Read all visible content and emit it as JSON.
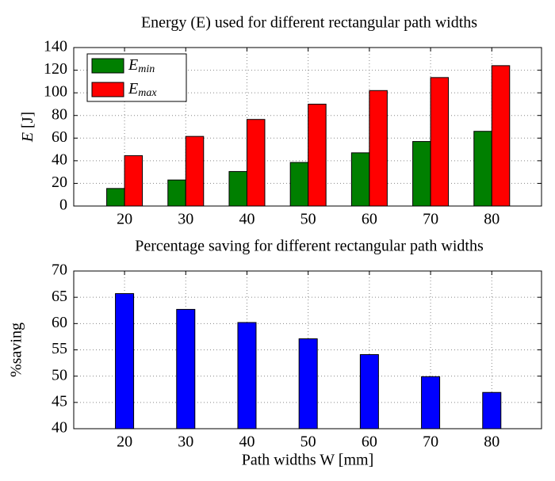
{
  "chart_data": [
    {
      "type": "bar",
      "title": "Energy (E) used for different rectangular path widths",
      "ylabel": "E [J]",
      "categories": [
        20,
        30,
        40,
        50,
        60,
        70,
        80
      ],
      "series": [
        {
          "name": "Emin",
          "color": "#007f00",
          "values": [
            15.5,
            23,
            30.5,
            38.5,
            47,
            57,
            66
          ]
        },
        {
          "name": "Emax",
          "color": "#ff0000",
          "values": [
            44.5,
            61.5,
            76.5,
            90,
            102,
            113.5,
            124
          ]
        }
      ],
      "ylim": [
        0,
        140
      ],
      "yticks": [
        0,
        20,
        40,
        60,
        80,
        100,
        120,
        140
      ],
      "grid": true,
      "legend": "upper left"
    },
    {
      "type": "bar",
      "title": "Percentage saving for different rectangular path widths",
      "ylabel": "%saving",
      "xlabel": "Path widths W [mm]",
      "categories": [
        20,
        30,
        40,
        50,
        60,
        70,
        80
      ],
      "values": [
        65.7,
        62.7,
        60.2,
        57.1,
        54.1,
        49.9,
        46.9
      ],
      "color": "#0000ff",
      "ylim": [
        40,
        70
      ],
      "yticks": [
        40,
        45,
        50,
        55,
        60,
        65,
        70
      ],
      "grid": true
    }
  ]
}
